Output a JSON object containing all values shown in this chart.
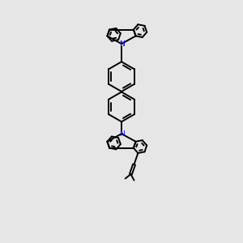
{
  "bg_color": "#e6e6e6",
  "bond_color": "#000000",
  "nitrogen_color": "#0000cc",
  "lw": 1.4,
  "fig_size": [
    3.0,
    3.0
  ],
  "dpi": 100,
  "xlim": [
    -2.8,
    2.8
  ],
  "ylim": [
    -5.5,
    5.5
  ]
}
